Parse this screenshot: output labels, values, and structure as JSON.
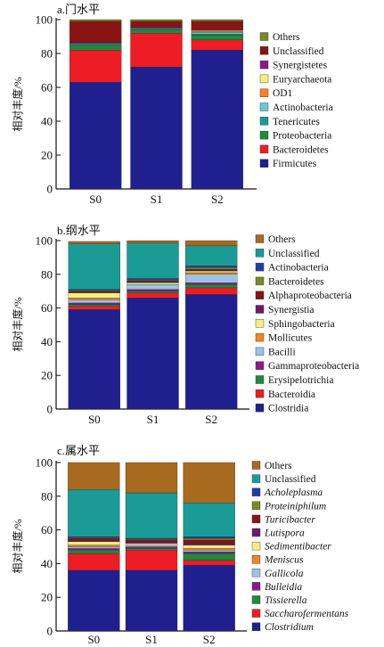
{
  "chart_data": [
    {
      "type": "bar",
      "stacked": true,
      "title": "a.门水平",
      "ylabel": "相对丰度/%",
      "xlabel": "",
      "ylim": [
        0,
        100
      ],
      "yticks": [
        0,
        20,
        40,
        60,
        80,
        100
      ],
      "categories": [
        "S0",
        "S1",
        "S2"
      ],
      "legend_position": "right",
      "italic_legend": false,
      "series": [
        {
          "name": "Firmicutes",
          "color": "#1f1f8f",
          "values": [
            63,
            72,
            82
          ]
        },
        {
          "name": "Bacteroidetes",
          "color": "#ee1c24",
          "values": [
            19,
            20,
            6
          ]
        },
        {
          "name": "Proteobacteria",
          "color": "#1f8a3a",
          "values": [
            3,
            2,
            3
          ]
        },
        {
          "name": "Tenericutes",
          "color": "#1a9b96",
          "values": [
            0.5,
            0.5,
            0.5
          ]
        },
        {
          "name": "Actinobacteria",
          "color": "#66c9d4",
          "values": [
            0.5,
            0.5,
            1
          ]
        },
        {
          "name": "OD1",
          "color": "#f5831f",
          "values": [
            0,
            0,
            0.5
          ]
        },
        {
          "name": "Euryarchaeota",
          "color": "#f4f07a",
          "values": [
            0,
            0,
            0.5
          ]
        },
        {
          "name": "Synergistetes",
          "color": "#8b1a8b",
          "values": [
            0.5,
            0.5,
            0.5
          ]
        },
        {
          "name": "Unclassified",
          "color": "#8a1414",
          "values": [
            12.5,
            3.5,
            5
          ]
        },
        {
          "name": "Others",
          "color": "#7a8a24",
          "values": [
            1,
            1,
            1
          ]
        }
      ]
    },
    {
      "type": "bar",
      "stacked": true,
      "title": "b.纲水平",
      "ylabel": "相对丰度/%",
      "xlabel": "",
      "ylim": [
        0,
        100
      ],
      "yticks": [
        0,
        20,
        40,
        60,
        80,
        100
      ],
      "categories": [
        "S0",
        "S1",
        "S2"
      ],
      "legend_position": "right",
      "italic_legend": false,
      "series": [
        {
          "name": "Clostridia",
          "color": "#1f1f8f",
          "values": [
            59,
            66,
            68
          ]
        },
        {
          "name": "Bacteroidia",
          "color": "#ee1c24",
          "values": [
            2,
            3,
            4
          ]
        },
        {
          "name": "Erysipelotrichia",
          "color": "#1f8a3a",
          "values": [
            1,
            1,
            2
          ]
        },
        {
          "name": "Gammaproteobacteria",
          "color": "#8b1a8b",
          "values": [
            1,
            1,
            1
          ]
        },
        {
          "name": "Bacilli",
          "color": "#9cc3e3",
          "values": [
            2,
            3,
            5
          ]
        },
        {
          "name": "Mollicutes",
          "color": "#f5831f",
          "values": [
            1,
            0,
            1
          ]
        },
        {
          "name": "Sphingobacteria",
          "color": "#f4f07a",
          "values": [
            3,
            1,
            1
          ]
        },
        {
          "name": "Synergistia",
          "color": "#6b1a6b",
          "values": [
            0.5,
            0.5,
            0.5
          ]
        },
        {
          "name": "Alphaproteobacteria",
          "color": "#8a1414",
          "values": [
            0.5,
            0.5,
            0.5
          ]
        },
        {
          "name": "Bacteroidetes",
          "color": "#7a8a24",
          "values": [
            0.5,
            0.5,
            1
          ]
        },
        {
          "name": "Actinobacteria",
          "color": "#1f3fa0",
          "values": [
            0.5,
            1,
            1
          ]
        },
        {
          "name": "Unclassified",
          "color": "#1a9b96",
          "values": [
            27,
            21,
            12
          ]
        },
        {
          "name": "Others",
          "color": "#a86a1e",
          "values": [
            1.5,
            1.5,
            3
          ]
        }
      ]
    },
    {
      "type": "bar",
      "stacked": true,
      "title": "c.属水平",
      "ylabel": "相对丰度/%",
      "xlabel": "",
      "ylim": [
        0,
        100
      ],
      "yticks": [
        0,
        20,
        40,
        60,
        80,
        100
      ],
      "categories": [
        "S0",
        "S1",
        "S2"
      ],
      "legend_position": "right",
      "italic_legend": true,
      "series": [
        {
          "name": "Clostridium",
          "color": "#1f1f8f",
          "values": [
            36,
            36,
            39
          ]
        },
        {
          "name": "Saccharofermentans",
          "color": "#ee1c24",
          "values": [
            10,
            12,
            3
          ]
        },
        {
          "name": "Tissierella",
          "color": "#1f8a3a",
          "values": [
            2,
            1,
            4
          ]
        },
        {
          "name": "Bulleidia",
          "color": "#8b1a8b",
          "values": [
            1,
            1,
            1
          ]
        },
        {
          "name": "Gallicola",
          "color": "#9cc3e3",
          "values": [
            1,
            1,
            1
          ]
        },
        {
          "name": "Meniscus",
          "color": "#f5831f",
          "values": [
            1,
            0,
            1
          ]
        },
        {
          "name": "Sedimentibacter",
          "color": "#f4f07a",
          "values": [
            2,
            1,
            2
          ]
        },
        {
          "name": "Lutispora",
          "color": "#6b1a6b",
          "values": [
            1,
            1,
            1
          ]
        },
        {
          "name": "Turicibacter",
          "color": "#8a1414",
          "values": [
            1,
            1,
            2
          ]
        },
        {
          "name": "Proteiniphilum",
          "color": "#7a8a24",
          "values": [
            0.5,
            0.5,
            1
          ]
        },
        {
          "name": "Acholeplasma",
          "color": "#1f3fa0",
          "values": [
            0.5,
            0.5,
            1
          ]
        },
        {
          "name": "Unclassified",
          "color": "#1a9b96",
          "values": [
            28,
            27,
            20
          ]
        },
        {
          "name": "Others",
          "color": "#a86a1e",
          "values": [
            16,
            18,
            24
          ]
        }
      ]
    }
  ]
}
